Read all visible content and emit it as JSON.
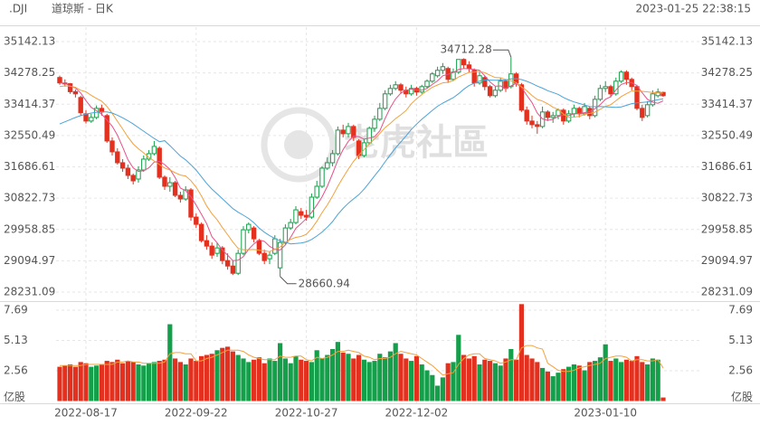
{
  "chart_data": {
    "type": "candlestick",
    "symbol": ".DJI",
    "title": "道琼斯 - 日K",
    "timestamp": "2023-01-25 22:38:15",
    "watermark": "老虎社區",
    "categories": [
      null,
      null,
      null,
      null,
      null,
      "2022-08-17",
      null,
      null,
      null,
      null,
      null,
      null,
      null,
      null,
      null,
      null,
      null,
      null,
      null,
      null,
      null,
      null,
      null,
      null,
      null,
      null,
      "2022-09-22",
      null,
      null,
      null,
      null,
      null,
      null,
      null,
      null,
      null,
      null,
      null,
      null,
      null,
      null,
      null,
      null,
      null,
      null,
      null,
      null,
      "2022-10-27",
      null,
      null,
      null,
      null,
      null,
      null,
      null,
      null,
      null,
      null,
      null,
      null,
      null,
      null,
      null,
      null,
      null,
      null,
      null,
      null,
      "2022-12-02",
      null,
      null,
      null,
      null,
      null,
      null,
      null,
      null,
      null,
      null,
      null,
      null,
      null,
      null,
      null,
      null,
      null,
      null,
      null,
      null,
      null,
      null,
      null,
      null,
      null,
      null,
      null,
      null,
      null,
      null,
      null,
      null,
      null,
      null,
      null,
      "2023-01-10",
      null,
      null,
      null,
      null,
      null,
      null,
      null,
      null,
      null,
      null,
      null
    ],
    "open": [
      34152,
      34000,
      33980,
      33760,
      33600,
      33150,
      32950,
      33050,
      33300,
      33100,
      32400,
      32100,
      31800,
      31650,
      31450,
      31350,
      31600,
      31900,
      32050,
      32200,
      31400,
      31150,
      31250,
      30900,
      30800,
      31050,
      30300,
      30100,
      29650,
      29500,
      29300,
      29450,
      29100,
      28950,
      28750,
      29300,
      29950,
      30000,
      29650,
      29300,
      29150,
      29300,
      28900,
      29600,
      30000,
      30150,
      30450,
      30350,
      30300,
      30850,
      31150,
      31650,
      31800,
      32050,
      32700,
      32600,
      32800,
      32400,
      32000,
      32350,
      32750,
      33000,
      33300,
      33700,
      33850,
      33950,
      33800,
      33700,
      33850,
      33750,
      33900,
      34050,
      34200,
      34350,
      34400,
      34100,
      34300,
      34650,
      34500,
      34350,
      34000,
      34150,
      33900,
      33650,
      33800,
      34050,
      33900,
      34250,
      33950,
      33250,
      32950,
      32850,
      32800,
      33200,
      33050,
      33100,
      33250,
      32950,
      33150,
      33300,
      33150,
      33300,
      33100,
      33550,
      33850,
      33900,
      33700,
      34050,
      34300,
      34100,
      33900,
      33300,
      33100,
      33400,
      33650,
      33740
    ],
    "high": [
      34202,
      34100,
      34000,
      33820,
      33650,
      33250,
      33150,
      33380,
      33400,
      33150,
      32500,
      32200,
      31900,
      31750,
      31500,
      31700,
      32000,
      32150,
      32400,
      32250,
      31450,
      31400,
      31300,
      31000,
      31150,
      31100,
      30400,
      30150,
      29800,
      29600,
      29600,
      29500,
      29300,
      29100,
      29400,
      30050,
      30150,
      30050,
      29700,
      29400,
      29350,
      29800,
      29700,
      30100,
      30250,
      30600,
      30550,
      30500,
      30950,
      31300,
      31700,
      31950,
      32150,
      32800,
      32850,
      32900,
      32850,
      32450,
      32450,
      32800,
      33100,
      33450,
      33800,
      33950,
      34050,
      34000,
      33900,
      33950,
      33900,
      33950,
      34100,
      34300,
      34450,
      34550,
      34450,
      34400,
      34650,
      34680,
      34600,
      34400,
      34300,
      34200,
      33950,
      33900,
      34150,
      34100,
      34712.28,
      34300,
      34000,
      33350,
      33100,
      32950,
      33350,
      33250,
      33200,
      33300,
      33300,
      33250,
      33400,
      33350,
      33450,
      33350,
      33650,
      33950,
      34050,
      33950,
      34150,
      34350,
      34350,
      34150,
      33950,
      33400,
      33500,
      33800,
      33850,
      33760
    ],
    "low": [
      33950,
      33900,
      33700,
      33600,
      33100,
      32880,
      32900,
      33000,
      33100,
      32350,
      32000,
      31750,
      31550,
      31350,
      31200,
      31250,
      31550,
      31850,
      32000,
      31350,
      31050,
      31000,
      30850,
      30700,
      30750,
      30200,
      30000,
      29600,
      29400,
      29150,
      29200,
      29000,
      28850,
      28700,
      28700,
      29250,
      29850,
      29600,
      29250,
      29000,
      29000,
      29250,
      28660.94,
      29550,
      29950,
      30100,
      30250,
      30200,
      30250,
      30800,
      31100,
      31600,
      31700,
      32000,
      32500,
      32500,
      32400,
      31900,
      31950,
      32300,
      32650,
      32950,
      33250,
      33650,
      33800,
      33700,
      33600,
      33650,
      33650,
      33700,
      33850,
      34000,
      34150,
      34250,
      34000,
      34050,
      34250,
      34400,
      34300,
      33900,
      33950,
      33800,
      33600,
      33600,
      33750,
      33750,
      33850,
      33900,
      33200,
      32850,
      32750,
      32600,
      32750,
      32950,
      32900,
      33000,
      32850,
      32900,
      33050,
      33050,
      33100,
      33000,
      33050,
      33500,
      33750,
      33600,
      33650,
      34000,
      33950,
      33800,
      33250,
      32950,
      33050,
      33350,
      33600,
      33620
    ],
    "close": [
      34002,
      33980,
      33760,
      33700,
      33180,
      32950,
      33050,
      33300,
      33200,
      32400,
      32100,
      31800,
      31650,
      31450,
      31300,
      31600,
      31900,
      32050,
      32250,
      31400,
      31150,
      31250,
      30900,
      30800,
      31050,
      30300,
      30100,
      29650,
      29500,
      29250,
      29450,
      29100,
      28950,
      28750,
      29300,
      29950,
      30100,
      29700,
      29300,
      29100,
      29250,
      29700,
      29600,
      30000,
      30150,
      30500,
      30350,
      30300,
      30850,
      31150,
      31650,
      31800,
      32050,
      32700,
      32600,
      32800,
      32500,
      32000,
      32350,
      32750,
      33000,
      33300,
      33700,
      33850,
      33950,
      33800,
      33700,
      33850,
      33750,
      33900,
      34050,
      34250,
      34350,
      34450,
      34100,
      34300,
      34650,
      34500,
      34400,
      34000,
      34200,
      33900,
      33650,
      33800,
      34050,
      33850,
      34250,
      34000,
      33250,
      32950,
      32850,
      32800,
      33200,
      33050,
      33100,
      33250,
      32950,
      33150,
      33300,
      33150,
      33350,
      33100,
      33550,
      33850,
      33900,
      33700,
      34050,
      34300,
      34100,
      33900,
      33300,
      33050,
      33400,
      33700,
      33750,
      33650
    ],
    "up_color": "#14a04a",
    "down_color": "#e4311f",
    "ylim": [
      28231.09,
      35142.13
    ],
    "yticks": [
      35142.13,
      34278.25,
      33414.37,
      32550.49,
      31686.61,
      30822.73,
      29958.85,
      29094.97,
      28231.09
    ],
    "grid": true,
    "moving_averages": [
      {
        "color": "#e8508a",
        "values": [
          34002,
          33991,
          33914,
          33861,
          33724,
          33514,
          33328,
          33236,
          33136,
          32980,
          32810,
          32560,
          32230,
          31880,
          31660,
          31560,
          31580,
          31660,
          31820,
          31840,
          31750,
          31620,
          31390,
          31100,
          31030,
          30860,
          30630,
          30380,
          30120,
          29760,
          29590,
          29390,
          29250,
          29100,
          29110,
          29210,
          29410,
          29560,
          29670,
          29630,
          29490,
          29410,
          29390,
          29530,
          29740,
          29990,
          30120,
          30260,
          30430,
          30630,
          30860,
          31150,
          31500,
          31870,
          32160,
          32390,
          32530,
          32520,
          32450,
          32480,
          32520,
          32680,
          33020,
          33320,
          33560,
          33720,
          33800,
          33830,
          33810,
          33800,
          33850,
          33960,
          34060,
          34200,
          34240,
          34290,
          34370,
          34400,
          34390,
          34370,
          34350,
          34200,
          34030,
          33910,
          33920,
          33850,
          33920,
          33990,
          33880,
          33660,
          33460,
          33170,
          33010,
          32970,
          33000,
          33080,
          33110,
          33100,
          33150,
          33160,
          33180,
          33210,
          33290,
          33400,
          33550,
          33620,
          33810,
          33960,
          34010,
          34010,
          33930,
          33730,
          33550,
          33470,
          33440,
          33510
        ]
      },
      {
        "color": "#f2a13b",
        "values": [
          33900,
          33920,
          33910,
          33880,
          33800,
          33758,
          33660,
          33575,
          33499,
          33352,
          33162,
          32944,
          32733,
          32508,
          32320,
          32185,
          32070,
          31945,
          31850,
          31750,
          31655,
          31600,
          31525,
          31460,
          31435,
          31305,
          31125,
          30885,
          30610,
          30395,
          30225,
          30010,
          29815,
          29610,
          29435,
          29400,
          29400,
          29405,
          29385,
          29370,
          29350,
          29410,
          29475,
          29600,
          29685,
          29740,
          29765,
          29825,
          29980,
          30185,
          30425,
          30635,
          30880,
          31150,
          31395,
          31625,
          31840,
          32010,
          32160,
          32320,
          32455,
          32605,
          32770,
          32885,
          33020,
          33120,
          33240,
          33425,
          33565,
          33680,
          33785,
          33880,
          33945,
          34005,
          34020,
          34070,
          34165,
          34230,
          34295,
          34305,
          34320,
          34285,
          34215,
          34150,
          34145,
          34100,
          34060,
          34010,
          33895,
          33790,
          33655,
          33545,
          33500,
          33425,
          33330,
          33270,
          33140,
          33055,
          33060,
          33080,
          33130,
          33160,
          33195,
          33275,
          33355,
          33400,
          33510,
          33625,
          33705,
          33780,
          33775,
          33770,
          33755,
          33740,
          33725,
          33720
        ]
      },
      {
        "color": "#4aa3d8",
        "values": [
          32870,
          32930,
          32990,
          33050,
          33100,
          33140,
          33170,
          33190,
          33200,
          33200,
          33170,
          33110,
          33040,
          32960,
          32870,
          32770,
          32670,
          32570,
          32470,
          32380,
          32408,
          32272,
          32129,
          31984,
          31878,
          31745,
          31598,
          31415,
          31230,
          31073,
          30940,
          30805,
          30670,
          30535,
          30435,
          30353,
          30263,
          30145,
          29998,
          29883,
          29788,
          29710,
          29645,
          29605,
          29560,
          29570,
          29583,
          29615,
          29683,
          29778,
          29888,
          30023,
          30178,
          30375,
          30540,
          30683,
          30803,
          30918,
          31070,
          31253,
          31440,
          31620,
          31825,
          32018,
          32208,
          32373,
          32540,
          32718,
          32863,
          33000,
          33120,
          33243,
          33358,
          33445,
          33520,
          33595,
          33703,
          33828,
          33930,
          33993,
          34053,
          34083,
          34080,
          34078,
          34083,
          34085,
          34113,
          34120,
          34095,
          34048,
          33988,
          33915,
          33858,
          33788,
          33738,
          33685,
          33600,
          33533,
          33478,
          33435,
          33393,
          33353,
          33348,
          33350,
          33343,
          33335,
          33325,
          33340,
          33383,
          33430,
          33453,
          33465,
          33475,
          33508,
          33540,
          33560
        ]
      }
    ],
    "volume": {
      "values": [
        2.9,
        3.0,
        3.1,
        2.9,
        3.3,
        3.2,
        2.9,
        3.0,
        3.1,
        3.4,
        3.3,
        3.5,
        3.2,
        3.4,
        3.3,
        3.1,
        3.0,
        3.2,
        3.3,
        3.4,
        3.5,
        6.5,
        3.6,
        3.3,
        3.1,
        3.6,
        3.4,
        3.8,
        3.9,
        4.0,
        4.3,
        4.5,
        4.6,
        4.2,
        3.9,
        3.6,
        3.3,
        3.5,
        3.7,
        3.2,
        3.6,
        3.4,
        4.9,
        3.6,
        3.2,
        3.8,
        3.5,
        3.4,
        3.3,
        4.3,
        3.6,
        3.9,
        4.4,
        5.0,
        4.1,
        4.0,
        3.6,
        3.9,
        3.5,
        3.3,
        3.4,
        4.0,
        3.7,
        4.2,
        4.9,
        4.0,
        3.6,
        3.4,
        3.8,
        3.1,
        2.6,
        2.2,
        1.3,
        2.0,
        3.2,
        3.3,
        5.6,
        3.9,
        3.6,
        3.8,
        3.1,
        3.5,
        3.4,
        3.2,
        3.0,
        3.6,
        4.4,
        3.5,
        8.2,
        3.9,
        3.6,
        3.3,
        2.8,
        2.5,
        2.1,
        2.4,
        2.7,
        2.9,
        3.1,
        3.0,
        2.6,
        3.3,
        3.4,
        3.7,
        4.8,
        3.4,
        3.6,
        3.3,
        3.5,
        3.4,
        3.8,
        3.3,
        3.1,
        3.6,
        3.5,
        0.3
      ],
      "ylim": [
        0,
        7.69
      ],
      "yticks": [
        7.69,
        5.13,
        2.56,
        {
          "value": 0,
          "label": "亿股"
        }
      ],
      "ma": {
        "color": "#f2a13b",
        "values": [
          3.0,
          3.0,
          3.0,
          3.0,
          3.0,
          3.1,
          3.1,
          3.1,
          3.1,
          3.1,
          3.1,
          3.3,
          3.3,
          3.4,
          3.3,
          3.3,
          3.2,
          3.2,
          3.2,
          3.2,
          3.3,
          4.0,
          4.1,
          4.1,
          4.0,
          4.0,
          3.4,
          3.4,
          3.6,
          3.7,
          3.9,
          4.1,
          4.3,
          4.3,
          4.3,
          4.2,
          3.9,
          3.7,
          3.6,
          3.5,
          3.5,
          3.5,
          3.8,
          3.7,
          3.7,
          3.8,
          3.8,
          3.5,
          3.4,
          3.7,
          3.6,
          3.7,
          3.9,
          4.2,
          4.2,
          4.3,
          4.2,
          4.1,
          3.8,
          3.7,
          3.5,
          3.6,
          3.6,
          3.7,
          4.0,
          4.2,
          4.1,
          4.0,
          3.9,
          3.6,
          3.3,
          3.0,
          2.6,
          2.2,
          2.3,
          2.4,
          3.1,
          3.6,
          3.9,
          4.0,
          4.0,
          3.6,
          3.5,
          3.4,
          3.2,
          3.3,
          3.5,
          3.5,
          4.5,
          4.7,
          4.7,
          4.5,
          4.4,
          3.2,
          2.9,
          2.6,
          2.5,
          2.5,
          2.6,
          2.8,
          2.9,
          3.0,
          3.1,
          3.2,
          3.6,
          3.7,
          3.8,
          3.8,
          3.7,
          3.4,
          3.5,
          3.5,
          3.4,
          3.4,
          3.5,
          2.8
        ]
      }
    }
  }
}
